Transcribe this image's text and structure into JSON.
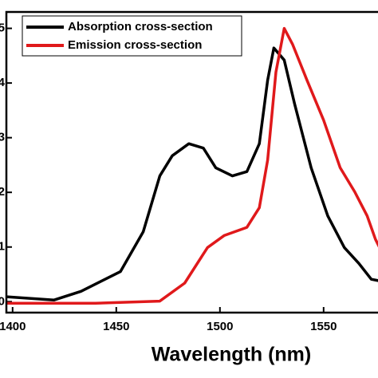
{
  "chart_data": {
    "type": "line",
    "xlabel": "Wavelength (nm)",
    "xlim": [
      1397,
      1577
    ],
    "xticks": [
      1400,
      1450,
      1500,
      1550
    ],
    "ylim": [
      -0.2,
      5.3
    ],
    "yticks": [
      0,
      1,
      2,
      3,
      4,
      5
    ],
    "legend": "upper left",
    "series": [
      {
        "name": "Absorption cross-section",
        "color": "#000000",
        "x": [
          1397,
          1420,
          1433,
          1452,
          1463,
          1471,
          1477,
          1485,
          1492,
          1498,
          1506,
          1513,
          1519,
          1523,
          1526,
          1531,
          1536,
          1544,
          1552,
          1560,
          1567,
          1573,
          1577
        ],
        "values": [
          0.09,
          0.03,
          0.19,
          0.55,
          1.28,
          2.3,
          2.67,
          2.89,
          2.81,
          2.45,
          2.3,
          2.38,
          2.89,
          4.05,
          4.64,
          4.42,
          3.62,
          2.45,
          1.57,
          0.99,
          0.7,
          0.41,
          0.38
        ]
      },
      {
        "name": "Emission cross-section",
        "color": "#e0191b",
        "x": [
          1397,
          1440,
          1471,
          1483,
          1494,
          1502,
          1513,
          1519,
          1523,
          1527,
          1531,
          1535,
          1542,
          1550,
          1558,
          1565,
          1571,
          1575,
          1577
        ],
        "values": [
          -0.03,
          -0.03,
          0.01,
          0.34,
          0.99,
          1.21,
          1.36,
          1.72,
          2.59,
          4.2,
          5.0,
          4.71,
          4.05,
          3.32,
          2.45,
          2.01,
          1.57,
          1.14,
          0.99
        ]
      }
    ]
  }
}
